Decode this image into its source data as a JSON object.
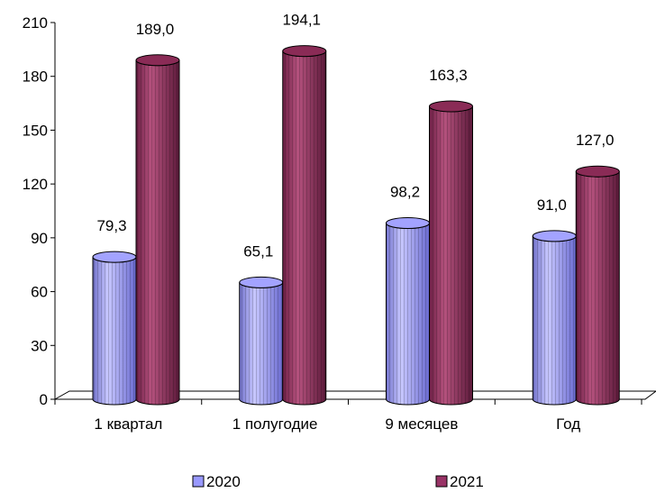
{
  "chart_data": {
    "type": "bar",
    "categories": [
      "1 квартал",
      "1 полугодие",
      "9 месяцев",
      "Год"
    ],
    "series": [
      {
        "name": "2020",
        "values": [
          79.3,
          65.1,
          98.2,
          91.0
        ],
        "labels": [
          "79,3",
          "65,1",
          "98,2",
          "91,0"
        ],
        "color": "#9999ff"
      },
      {
        "name": "2021",
        "values": [
          189.0,
          194.1,
          163.3,
          127.0
        ],
        "labels": [
          "189,0",
          "194,1",
          "163,3",
          "127,0"
        ],
        "color": "#993366"
      }
    ],
    "y_ticks": [
      0,
      30,
      60,
      90,
      120,
      150,
      180,
      210
    ],
    "ylim": [
      0,
      210
    ],
    "bar_shape": "cylinder",
    "grid": false,
    "legend_position": "bottom"
  }
}
